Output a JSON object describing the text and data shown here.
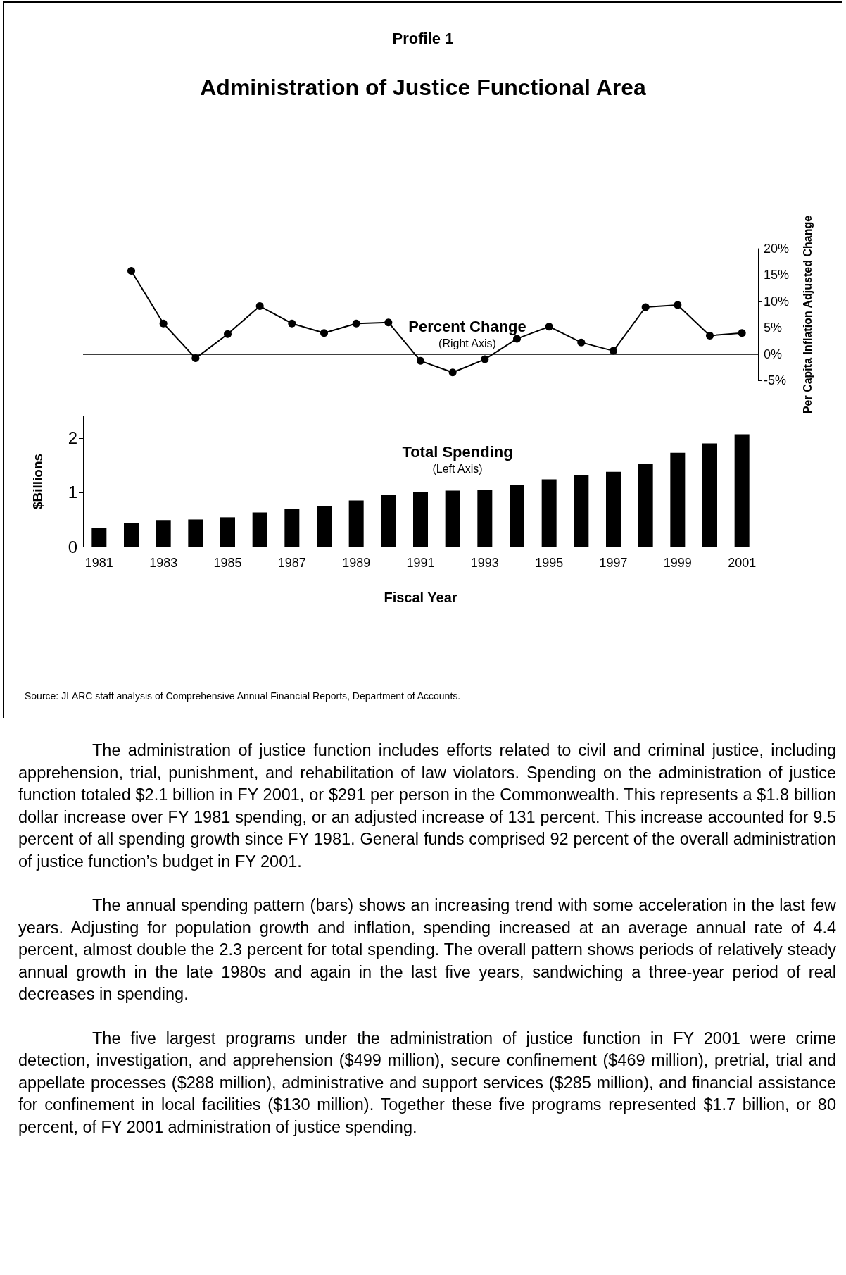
{
  "chart_data": [
    {
      "type": "line",
      "subtitle": "Profile 1",
      "title": "Administration of Justice Functional Area",
      "ylabel": "Per Capita Inflation Adjusted Change",
      "categories": [
        "1981",
        null,
        "1983",
        null,
        "1985",
        null,
        "1987",
        null,
        "1989",
        null,
        "1991",
        null,
        "1993",
        null,
        "1995",
        null,
        "1997",
        null,
        "1999",
        null,
        "2001"
      ],
      "series": [
        {
          "name": "Percent Change",
          "color": "#000000",
          "values": [
            null,
            15.8,
            5.8,
            -0.8,
            3.8,
            9.1,
            5.8,
            4.0,
            5.8,
            6.0,
            -1.3,
            -3.5,
            -1.0,
            2.9,
            5.2,
            2.2,
            0.6,
            8.9,
            9.3,
            3.5,
            4.0
          ]
        }
      ],
      "marker": "circle",
      "line_style": "solid",
      "ylim": [
        -5,
        20
      ],
      "yticks": [
        {
          "value": -5,
          "label": "-5%"
        },
        {
          "value": 0,
          "label": "0%"
        },
        {
          "value": 5,
          "label": "5%"
        },
        {
          "value": 10,
          "label": "10%"
        },
        {
          "value": 15,
          "label": "15%"
        },
        {
          "value": 20,
          "label": "20%"
        }
      ],
      "ref_lines": [
        {
          "axis": "y",
          "value": 0,
          "color": "#000000"
        }
      ],
      "tick_labels": "y",
      "grid": false,
      "annotations": [
        "(Right Axis)"
      ]
    },
    {
      "type": "bar",
      "xlabel": "Fiscal Year",
      "ylabel": "$Billions",
      "categories": [
        "1981",
        null,
        "1983",
        null,
        "1985",
        null,
        "1987",
        null,
        "1989",
        null,
        "1991",
        null,
        "1993",
        null,
        "1995",
        null,
        "1997",
        null,
        "1999",
        null,
        "2001"
      ],
      "series": [
        {
          "name": "Total Spending",
          "color": "#000000",
          "values": [
            0.35,
            0.43,
            0.49,
            0.5,
            0.54,
            0.63,
            0.69,
            0.75,
            0.85,
            0.96,
            1.01,
            1.03,
            1.05,
            1.13,
            1.24,
            1.31,
            1.38,
            1.53,
            1.73,
            1.9,
            2.07
          ]
        }
      ],
      "ylim": [
        0,
        2.4
      ],
      "yticks": [
        0,
        1,
        2
      ],
      "grid": false,
      "annotations": [
        "(Left Axis)",
        "Source: JLARC staff analysis of Comprehensive Annual Financial Reports, Department of Accounts.",
        "The administration of justice function includes efforts related to civil and criminal justice, including apprehension, trial, punishment, and rehabilitation of law violators.  Spending on the administration of justice function totaled $2.1 billion in FY 2001, or $291 per person in the Commonwealth.  This represents a $1.8 billion dollar increase over FY 1981 spending, or an adjusted increase of 131 percent.  This increase accounted for 9.5 percent of all spending growth since FY 1981.   General funds comprised 92 percent of the overall administration of justice function’s budget in FY 2001.",
        "The annual spending pattern (bars) shows an increasing trend with some acceleration in the last few years.  Adjusting for population growth and inflation, spending increased at an average annual rate of 4.4 percent, almost double the 2.3 percent for total spending.  The overall pattern shows periods of relatively steady annual growth in the late 1980s and again in the last five years, sandwiching a three-year period of real decreases in spending.",
        "The five largest programs under the administration of justice function in FY 2001 were crime detection, investigation, and apprehension  ($499 million), secure confinement ($469 million), pretrial, trial and appellate processes ($288 million), administrative and support services ($285 million), and financial assistance for confinement in local facilities ($130 million).  Together these five programs represented $1.7 billion, or 80 percent, of FY 2001 administration of justice spending."
      ]
    }
  ]
}
